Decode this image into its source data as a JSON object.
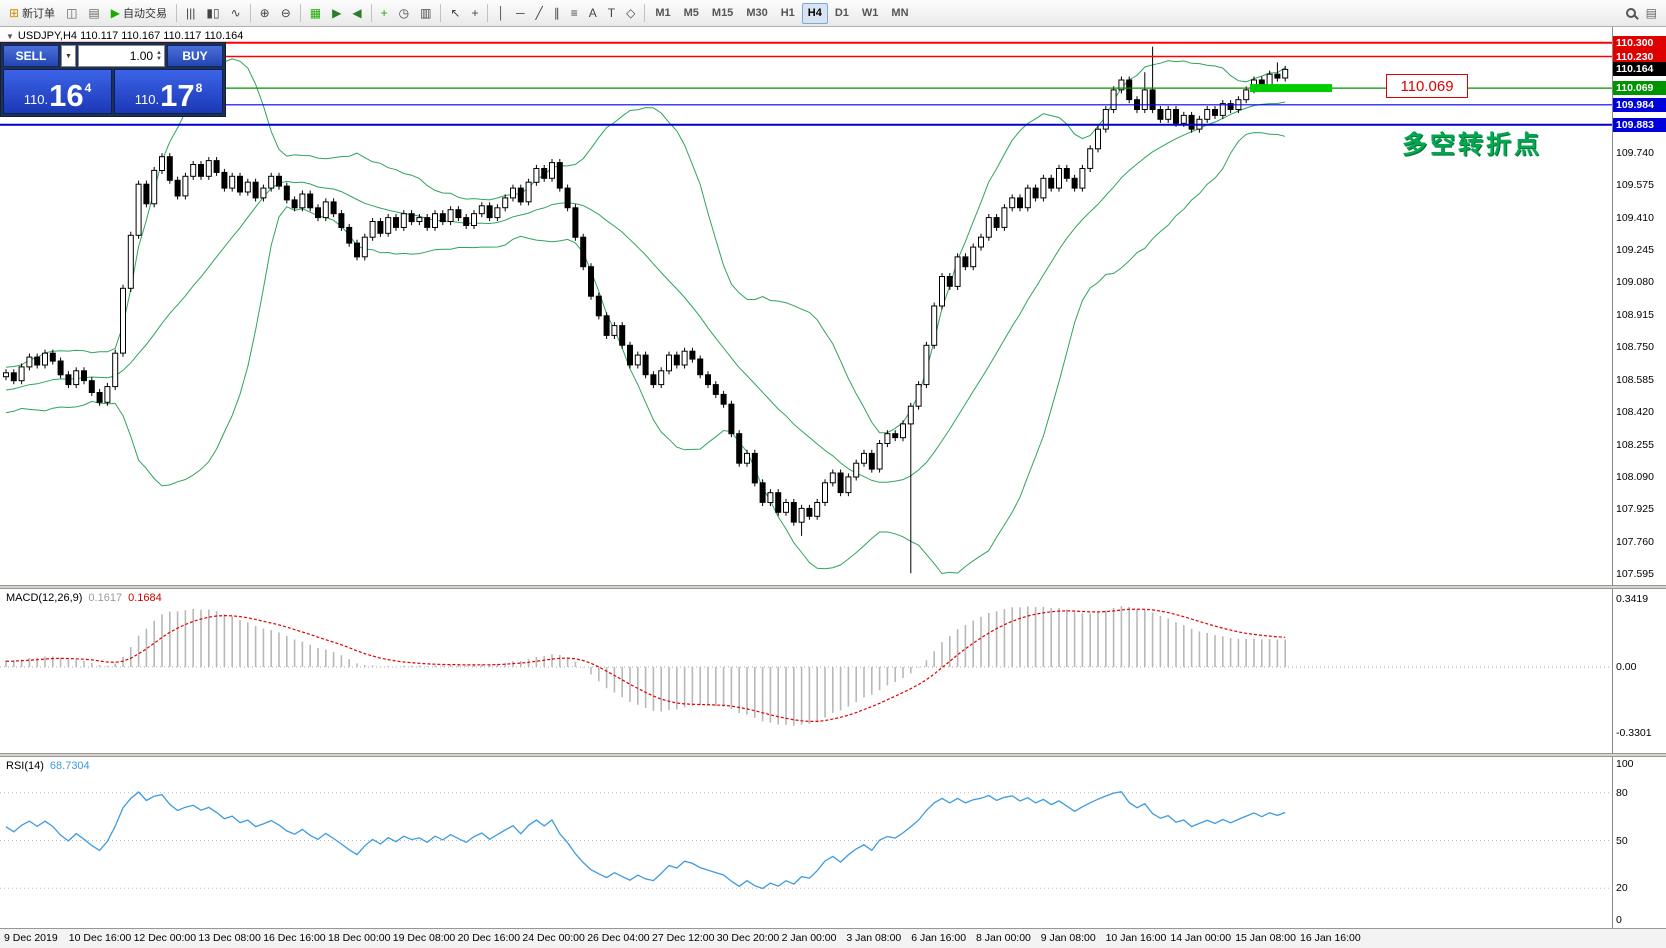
{
  "toolbar": {
    "items": [
      {
        "name": "new-order-button",
        "glyph": "⊞",
        "color": "#d88b00",
        "label": "新订单"
      },
      {
        "name": "chart-windows-icon",
        "glyph": "◫",
        "color": "#666"
      },
      {
        "name": "profiles-icon",
        "glyph": "▤",
        "color": "#666"
      },
      {
        "name": "autotrading-button",
        "glyph": "▶",
        "color": "#1faa00",
        "label": "自动交易"
      },
      {
        "type": "sep"
      },
      {
        "name": "bar-chart-icon",
        "glyph": "|||",
        "color": "#444"
      },
      {
        "name": "candlestick-chart-icon",
        "glyph": "▮▯",
        "color": "#444"
      },
      {
        "name": "line-chart-icon",
        "glyph": "∿",
        "color": "#444"
      },
      {
        "type": "sep"
      },
      {
        "name": "zoom-in-icon",
        "glyph": "⊕",
        "color": "#444"
      },
      {
        "name": "zoom-out-icon",
        "glyph": "⊖",
        "color": "#444"
      },
      {
        "type": "sep"
      },
      {
        "name": "tile-windows-icon",
        "glyph": "▦",
        "color": "#1faa00"
      },
      {
        "name": "auto-scroll-icon",
        "glyph": "▶",
        "color": "#2a7d2a"
      },
      {
        "name": "chart-shift-icon",
        "glyph": "◀",
        "color": "#2a7d2a"
      },
      {
        "type": "sep"
      },
      {
        "name": "indicators-icon",
        "glyph": "+",
        "color": "#1faa00"
      },
      {
        "name": "periods-icon",
        "glyph": "◷",
        "color": "#444"
      },
      {
        "name": "templates-icon",
        "glyph": "▥",
        "color": "#444"
      },
      {
        "type": "sep"
      },
      {
        "name": "cursor-icon",
        "glyph": "↖",
        "color": "#444"
      },
      {
        "name": "crosshair-icon",
        "glyph": "+",
        "color": "#444"
      },
      {
        "type": "sep"
      },
      {
        "name": "vertical-line-icon",
        "glyph": "│",
        "color": "#444"
      },
      {
        "name": "horizontal-line-icon",
        "glyph": "─",
        "color": "#444"
      },
      {
        "name": "trendline-icon",
        "glyph": "╱",
        "color": "#444"
      },
      {
        "name": "channel-icon",
        "glyph": "∥",
        "color": "#444"
      },
      {
        "name": "fibonacci-icon",
        "glyph": "≡",
        "color": "#444"
      },
      {
        "name": "text-icon",
        "glyph": "A",
        "color": "#444"
      },
      {
        "name": "label-icon",
        "glyph": "T",
        "color": "#444"
      },
      {
        "name": "shapes-icon",
        "glyph": "◇",
        "color": "#444"
      },
      {
        "type": "sep"
      }
    ],
    "timeframes": [
      "M1",
      "M5",
      "M15",
      "M30",
      "H1",
      "H4",
      "D1",
      "W1",
      "MN"
    ],
    "active_timeframe": "H4",
    "right_items": [
      {
        "name": "search-icon",
        "css": "mag"
      },
      {
        "name": "data-window-icon",
        "glyph": "▤"
      }
    ]
  },
  "symbol_info": {
    "text": "USDJPY,H4  110.117 110.167 110.117 110.164",
    "collapse_glyph": "▼"
  },
  "trade_panel": {
    "sell_label": "SELL",
    "buy_label": "BUY",
    "dropdown_glyph": "▼",
    "lot_value": "1.00",
    "sell_price": {
      "prefix": "110.",
      "big": "16",
      "sup": "4"
    },
    "buy_price": {
      "prefix": "110.",
      "big": "17",
      "sup": "8"
    }
  },
  "annotations": {
    "price_callout": "110.069",
    "turning_point_text": "多空转折点",
    "green_bar": {
      "price": 110.069,
      "x": 1250,
      "w": 82,
      "h": 8,
      "color": "#00CC00"
    }
  },
  "main_axis": {
    "grid_labels": [
      "109.740",
      "109.575",
      "109.410",
      "109.245",
      "109.080",
      "108.915",
      "108.750",
      "108.585",
      "108.420",
      "108.255",
      "108.090",
      "107.925",
      "107.760",
      "107.595"
    ],
    "special_labels": [
      {
        "text": "110.300",
        "price": 110.3,
        "bg": "#DF0000"
      },
      {
        "text": "110.230",
        "price": 110.23,
        "bg": "#DF0000"
      },
      {
        "text": "110.164",
        "price": 110.164,
        "bg": "#000000"
      },
      {
        "text": "110.069",
        "price": 110.069,
        "bg": "#009400"
      },
      {
        "text": "109.984",
        "price": 109.984,
        "bg": "#0000DD"
      },
      {
        "text": "109.883",
        "price": 109.883,
        "bg": "#0000DD"
      }
    ]
  },
  "hlines": [
    {
      "price": 110.3,
      "color": "#FF0000",
      "width": 2
    },
    {
      "price": 110.23,
      "color": "#FF0000",
      "width": 1.5
    },
    {
      "price": 110.069,
      "color": "#009400",
      "width": 1.2
    },
    {
      "price": 109.984,
      "color": "#0000FF",
      "width": 1.2
    },
    {
      "price": 109.883,
      "color": "#0000CC",
      "width": 2
    }
  ],
  "macd_panel": {
    "label": "MACD(12,26,9)",
    "values": [
      "0.1617",
      "0.1684"
    ],
    "axis_labels": [
      "0.3419",
      "0.00",
      "-0.3301"
    ]
  },
  "rsi_panel": {
    "label": "RSI(14)",
    "value": "68.7304",
    "axis_labels": [
      "100",
      "80",
      "50",
      "20",
      "0"
    ],
    "levels": [
      80,
      50,
      20
    ]
  },
  "time_axis": {
    "labels": [
      "9 Dec 2019",
      "10 Dec 16:00",
      "12 Dec 00:00",
      "13 Dec 08:00",
      "16 Dec 16:00",
      "18 Dec 00:00",
      "19 Dec 08:00",
      "20 Dec 16:00",
      "24 Dec 00:00",
      "26 Dec 04:00",
      "27 Dec 12:00",
      "30 Dec 20:00",
      "2 Jan 00:00",
      "3 Jan 08:00",
      "6 Jan 16:00",
      "8 Jan 00:00",
      "9 Jan 08:00",
      "10 Jan 16:00",
      "14 Jan 00:00",
      "15 Jan 08:00",
      "16 Jan 16:00"
    ]
  },
  "chart_data": {
    "type": "candlestick",
    "symbol": "USDJPY",
    "timeframe": "H4",
    "title": "USDJPY,H4",
    "ohlc_current": {
      "open": 110.117,
      "high": 110.167,
      "low": 110.117,
      "close": 110.164
    },
    "ylim": [
      107.54,
      110.38
    ],
    "pre_closes": [
      108.4,
      108.45,
      108.52,
      108.48,
      108.55,
      108.6,
      108.54,
      108.47,
      108.42,
      108.5,
      108.57,
      108.52,
      108.46,
      108.53,
      108.6,
      108.56,
      108.5,
      108.44,
      108.51,
      108.58,
      108.54,
      108.48,
      108.55,
      108.62,
      108.58,
      108.6
    ],
    "closes": [
      108.62,
      108.58,
      108.65,
      108.7,
      108.66,
      108.72,
      108.68,
      108.61,
      108.56,
      108.63,
      108.58,
      108.52,
      108.47,
      108.55,
      108.72,
      109.05,
      109.32,
      109.58,
      109.48,
      109.65,
      109.72,
      109.6,
      109.52,
      109.62,
      109.68,
      109.62,
      109.7,
      109.64,
      109.56,
      109.62,
      109.54,
      109.59,
      109.51,
      109.56,
      109.62,
      109.57,
      109.5,
      109.46,
      109.53,
      109.46,
      109.41,
      109.49,
      109.43,
      109.36,
      109.28,
      109.21,
      109.31,
      109.39,
      109.33,
      109.41,
      109.36,
      109.43,
      109.39,
      109.41,
      109.36,
      109.43,
      109.39,
      109.45,
      109.41,
      109.37,
      109.43,
      109.47,
      109.41,
      109.46,
      109.51,
      109.56,
      109.49,
      109.59,
      109.66,
      109.61,
      109.69,
      109.56,
      109.46,
      109.31,
      109.16,
      109.01,
      108.91,
      108.81,
      108.86,
      108.76,
      108.66,
      108.71,
      108.61,
      108.56,
      108.63,
      108.71,
      108.66,
      108.73,
      108.69,
      108.61,
      108.56,
      108.51,
      108.46,
      108.31,
      108.16,
      108.21,
      108.06,
      107.96,
      108.01,
      107.91,
      107.96,
      107.86,
      107.93,
      107.89,
      107.96,
      108.06,
      108.11,
      108.01,
      108.09,
      108.16,
      108.21,
      108.13,
      108.26,
      108.31,
      108.29,
      108.36,
      108.45,
      108.56,
      108.76,
      108.96,
      109.11,
      109.06,
      109.21,
      109.16,
      109.26,
      109.31,
      109.41,
      109.36,
      109.46,
      109.51,
      109.46,
      109.56,
      109.51,
      109.61,
      109.56,
      109.66,
      109.61,
      109.56,
      109.66,
      109.76,
      109.86,
      109.96,
      110.06,
      110.11,
      110.01,
      109.96,
      110.06,
      109.96,
      109.91,
      109.96,
      109.89,
      109.93,
      109.86,
      109.91,
      109.96,
      109.93,
      109.99,
      109.96,
      110.01,
      110.06,
      110.11,
      110.08,
      110.14,
      110.12,
      110.164
    ],
    "wick_overrides": [
      {
        "i": 102,
        "low": 107.79
      },
      {
        "i": 116,
        "low": 107.6
      },
      {
        "i": 146,
        "high": 110.15
      },
      {
        "i": 147,
        "high": 110.28
      },
      {
        "i": 163,
        "high": 110.2
      }
    ],
    "colors": {
      "bands": "#2FA45C",
      "bull": "#FFFFFF",
      "bear": "#000000",
      "wick": "#000000",
      "macd_hist": "#B8B8B8",
      "macd_signal": "#E00000",
      "rsi": "#3E9BDE"
    },
    "indicators": {
      "bollinger": {
        "period": 20,
        "deviation": 2
      },
      "macd": {
        "fast": 12,
        "slow": 26,
        "signal": 9,
        "values": [
          0.1617,
          0.1684
        ],
        "axis_max": 0.3419,
        "axis_min": -0.3301
      },
      "rsi": {
        "period": 14,
        "value": 68.7304,
        "levels": [
          80,
          50,
          20
        ]
      }
    }
  }
}
